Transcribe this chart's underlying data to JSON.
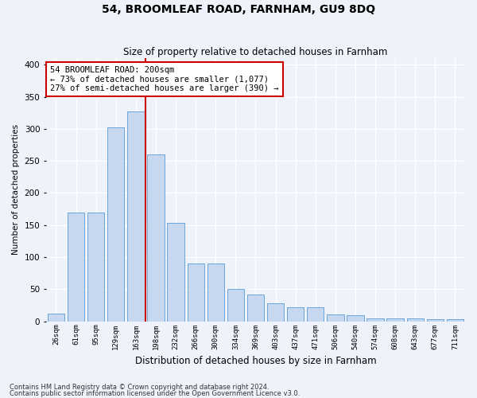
{
  "title": "54, BROOMLEAF ROAD, FARNHAM, GU9 8DQ",
  "subtitle": "Size of property relative to detached houses in Farnham",
  "xlabel": "Distribution of detached houses by size in Farnham",
  "ylabel": "Number of detached properties",
  "bar_labels": [
    "26sqm",
    "61sqm",
    "95sqm",
    "129sqm",
    "163sqm",
    "198sqm",
    "232sqm",
    "266sqm",
    "300sqm",
    "334sqm",
    "369sqm",
    "403sqm",
    "437sqm",
    "471sqm",
    "506sqm",
    "540sqm",
    "574sqm",
    "608sqm",
    "643sqm",
    "677sqm",
    "711sqm"
  ],
  "bar_heights": [
    12,
    170,
    170,
    302,
    327,
    260,
    153,
    90,
    90,
    50,
    42,
    28,
    22,
    22,
    11,
    10,
    5,
    5,
    5,
    3,
    3
  ],
  "bar_color": "#c5d8f0",
  "bar_edge_color": "#5b9bd5",
  "vline_x_index": 5,
  "vline_color": "#cc0000",
  "annotation_text": "54 BROOMLEAF ROAD: 200sqm\n← 73% of detached houses are smaller (1,077)\n27% of semi-detached houses are larger (390) →",
  "annotation_box_color": "#ffffff",
  "annotation_box_edge": "#cc0000",
  "background_color": "#eef2fa",
  "grid_color": "#ffffff",
  "ylim": [
    0,
    410
  ],
  "footnote1": "Contains HM Land Registry data © Crown copyright and database right 2024.",
  "footnote2": "Contains public sector information licensed under the Open Government Licence v3.0."
}
